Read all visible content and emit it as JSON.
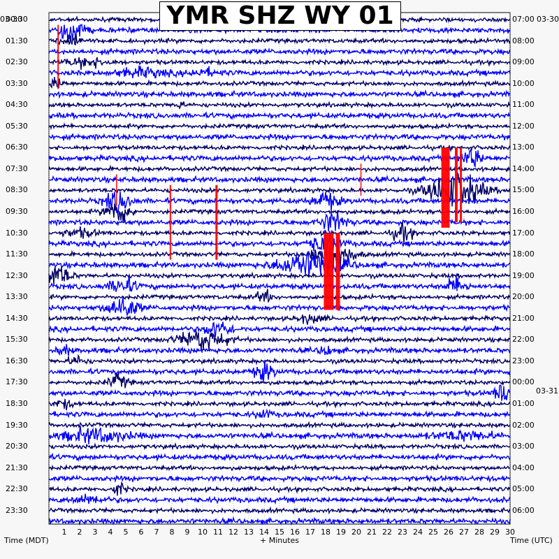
{
  "chart_data": {
    "type": "line",
    "title": "YMR SHZ WY 01",
    "date_left": "03-30",
    "date_right_top": "03-30",
    "date_right_mid": "03-31",
    "xlabel": "+ Minutes",
    "left_axis_label": "Time (MDT)",
    "right_axis_label": "Time (UTC)",
    "x_ticks": [
      1,
      2,
      3,
      4,
      5,
      6,
      7,
      8,
      9,
      10,
      11,
      12,
      13,
      14,
      15,
      16,
      17,
      18,
      19,
      20,
      21,
      22,
      23,
      24,
      25,
      26,
      27,
      28,
      29,
      30
    ],
    "xlim": [
      0,
      30
    ],
    "left_time_labels": [
      "00:30",
      "01:30",
      "02:30",
      "03:30",
      "04:30",
      "05:30",
      "06:30",
      "07:30",
      "08:30",
      "09:30",
      "10:30",
      "11:30",
      "12:30",
      "13:30",
      "14:30",
      "15:30",
      "16:30",
      "17:30",
      "18:30",
      "19:30",
      "20:30",
      "21:30",
      "22:30",
      "23:30"
    ],
    "right_time_labels": [
      "07:00",
      "08:00",
      "09:00",
      "10:00",
      "11:00",
      "12:00",
      "13:00",
      "14:00",
      "15:00",
      "16:00",
      "17:00",
      "18:00",
      "19:00",
      "20:00",
      "21:00",
      "22:00",
      "23:00",
      "00:00",
      "01:00",
      "02:00",
      "03:00",
      "04:00",
      "05:00",
      "06:00"
    ],
    "trace_count": 48,
    "trace_colors": [
      "#000066",
      "#0000ff"
    ],
    "clip_color": "#ff0000",
    "grid": true
  }
}
